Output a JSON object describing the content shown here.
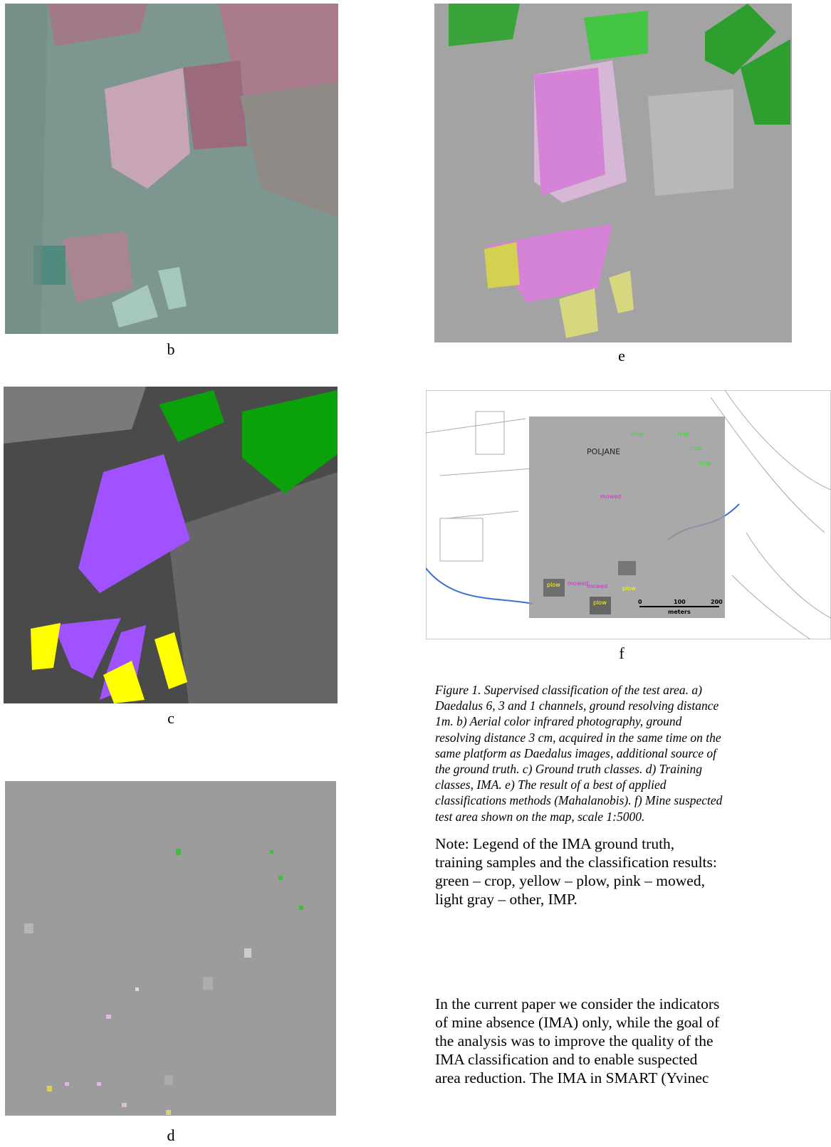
{
  "panels": {
    "b": "b",
    "e": "e",
    "c": "c",
    "f": "f",
    "d": "d"
  },
  "map": {
    "labels": {
      "crop": [
        "crop",
        "crop",
        "crop",
        "crop"
      ],
      "town": "POLJANE",
      "mowed": [
        "mowed",
        "mowed",
        "mowed"
      ],
      "plow": [
        "plow",
        "plow",
        "plow"
      ]
    },
    "scale": {
      "ticks": [
        "0",
        "100",
        "200"
      ],
      "unit": "meters"
    }
  },
  "caption": {
    "lines": [
      "Figure 1. Supervised classification of the test area. a)",
      "Daedalus 6, 3 and 1 channels, ground resolving distance",
      "1m. b) Aerial color infrared photography, ground",
      "resolving distance 3 cm, acquired in the same time on the",
      "same platform as Daedalus images, additional source of",
      "the ground truth.  c) Ground truth classes. d) Training",
      "classes, IMA. e) The result of a best of applied",
      "classifications methods (Mahalanobis). f) Mine suspected",
      "test area shown on the map, scale 1:5000."
    ]
  },
  "note": {
    "lines": [
      "Note: Legend of the IMA ground truth,",
      "training samples and the classification results:",
      "green – crop, yellow – plow, pink – mowed,",
      "light gray – other, IMP."
    ]
  },
  "body": {
    "lines": [
      "In the current paper we consider the indicators",
      "of mine absence (IMA) only, while the goal of",
      "the analysis was to improve the quality of the",
      "IMA classification and to enable suspected",
      "area reduction. The IMA in SMART (Yvinec"
    ]
  }
}
